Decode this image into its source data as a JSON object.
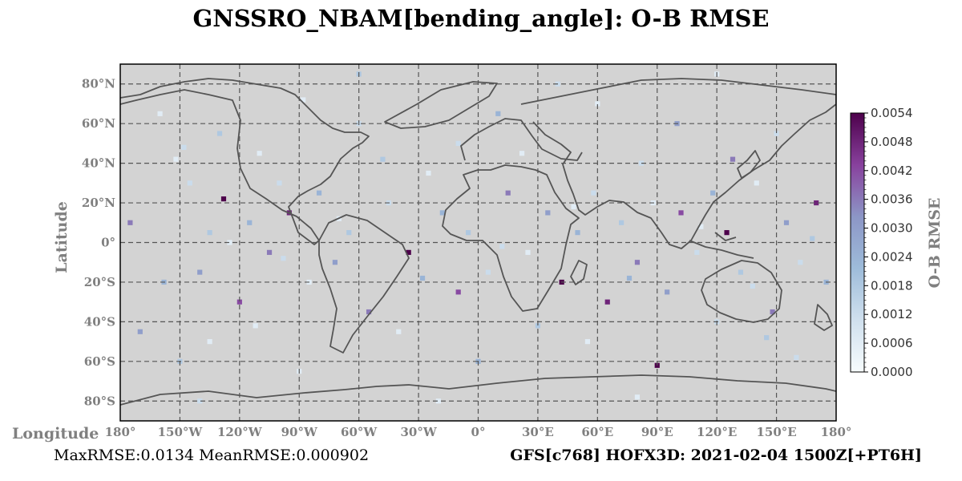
{
  "title": "GNSSRO_NBAM[bending_angle]: O-B RMSE",
  "footer": {
    "left": "MaxRMSE:0.0134 MeanRMSE:0.000902",
    "right": "GFS[c768] HOFX3D: 2021-02-04 1500Z[+PT6H]"
  },
  "colors": {
    "land": "#d3d3d3",
    "coastline": "#555555",
    "grid": "#555555",
    "cmap_low": "#f7fcfd",
    "cmap_mid": "#8c96c6",
    "cmap_high": "#4d004b"
  },
  "chart_data": {
    "type": "heatmap",
    "projection": "PlateCarree",
    "xlabel": "Longitude",
    "ylabel": "Latitude",
    "xlim": [
      -180,
      180
    ],
    "ylim": [
      -90,
      90
    ],
    "grid": true,
    "x_ticks": [
      "180°",
      "150°W",
      "120°W",
      "90°W",
      "60°W",
      "30°W",
      "0°",
      "30°E",
      "60°E",
      "90°E",
      "120°E",
      "150°E",
      "180°"
    ],
    "y_ticks": [
      "80°N",
      "60°N",
      "40°N",
      "20°N",
      "0°",
      "20°S",
      "40°S",
      "60°S",
      "80°S"
    ],
    "colorbar": {
      "label": "O-B RMSE",
      "range": [
        0.0,
        0.0054
      ],
      "ticks": [
        "0.0054",
        "0.0048",
        "0.0042",
        "0.0036",
        "0.0030",
        "0.0024",
        "0.0018",
        "0.0012",
        "0.0006",
        "0.0000"
      ],
      "cmap": "BuPu",
      "placement": "right"
    },
    "cell_size_deg": 2.5,
    "cells": [
      [
        -152,
        42,
        0.0006
      ],
      [
        -145,
        30,
        0.0012
      ],
      [
        -140,
        -15,
        0.003
      ],
      [
        -135,
        5,
        0.0018
      ],
      [
        -128,
        22,
        0.0054
      ],
      [
        -120,
        -30,
        0.0042
      ],
      [
        -115,
        10,
        0.0024
      ],
      [
        -110,
        45,
        0.0006
      ],
      [
        -105,
        -5,
        0.0036
      ],
      [
        -100,
        30,
        0.0012
      ],
      [
        -95,
        15,
        0.0048
      ],
      [
        -85,
        -20,
        0.0006
      ],
      [
        -80,
        25,
        0.0024
      ],
      [
        -72,
        -10,
        0.003
      ],
      [
        -65,
        5,
        0.0018
      ],
      [
        -55,
        -35,
        0.0036
      ],
      [
        -45,
        20,
        0.0012
      ],
      [
        -35,
        -5,
        0.0054
      ],
      [
        -25,
        35,
        0.0006
      ],
      [
        -18,
        15,
        0.0024
      ],
      [
        -10,
        -25,
        0.0042
      ],
      [
        -5,
        5,
        0.0018
      ],
      [
        5,
        -15,
        0.0012
      ],
      [
        15,
        25,
        0.0036
      ],
      [
        25,
        -5,
        0.0006
      ],
      [
        35,
        15,
        0.003
      ],
      [
        42,
        -20,
        0.0054
      ],
      [
        50,
        5,
        0.0024
      ],
      [
        58,
        25,
        0.0012
      ],
      [
        65,
        -30,
        0.0048
      ],
      [
        72,
        10,
        0.0018
      ],
      [
        80,
        -10,
        0.0036
      ],
      [
        88,
        20,
        0.0006
      ],
      [
        95,
        -25,
        0.003
      ],
      [
        102,
        15,
        0.0042
      ],
      [
        110,
        -5,
        0.0012
      ],
      [
        118,
        25,
        0.0024
      ],
      [
        125,
        5,
        0.0054
      ],
      [
        132,
        -15,
        0.0018
      ],
      [
        140,
        30,
        0.0006
      ],
      [
        148,
        -35,
        0.0036
      ],
      [
        155,
        10,
        0.003
      ],
      [
        162,
        -10,
        0.0012
      ],
      [
        170,
        20,
        0.0048
      ],
      [
        175,
        -20,
        0.0024
      ],
      [
        -160,
        65,
        0.0006
      ],
      [
        -130,
        55,
        0.0018
      ],
      [
        -60,
        60,
        0.0012
      ],
      [
        10,
        65,
        0.0024
      ],
      [
        60,
        70,
        0.0006
      ],
      [
        100,
        60,
        0.003
      ],
      [
        150,
        55,
        0.0012
      ],
      [
        -150,
        -60,
        0.0018
      ],
      [
        -90,
        -65,
        0.0006
      ],
      [
        0,
        -60,
        0.0024
      ],
      [
        90,
        -62,
        0.0054
      ],
      [
        160,
        -58,
        0.0012
      ],
      [
        -170,
        -45,
        0.003
      ],
      [
        -40,
        -45,
        0.0006
      ],
      [
        30,
        -42,
        0.0018
      ],
      [
        120,
        -40,
        0.0012
      ],
      [
        -175,
        10,
        0.0036
      ],
      [
        -158,
        -20,
        0.0024
      ],
      [
        -125,
        0,
        0.0006
      ],
      [
        -98,
        -8,
        0.0012
      ],
      [
        -70,
        12,
        0.0006
      ],
      [
        -28,
        -18,
        0.0024
      ],
      [
        12,
        -2,
        0.0012
      ],
      [
        48,
        18,
        0.0006
      ],
      [
        76,
        -18,
        0.0024
      ],
      [
        112,
        8,
        0.0006
      ],
      [
        138,
        -22,
        0.0012
      ],
      [
        168,
        2,
        0.0018
      ],
      [
        -148,
        48,
        0.0012
      ],
      [
        -112,
        -42,
        0.0006
      ],
      [
        -48,
        42,
        0.0018
      ],
      [
        22,
        45,
        0.0006
      ],
      [
        82,
        40,
        0.0012
      ],
      [
        128,
        42,
        0.0036
      ],
      [
        -135,
        -50,
        0.0006
      ],
      [
        -10,
        50,
        0.0012
      ],
      [
        55,
        -50,
        0.0006
      ],
      [
        145,
        -48,
        0.0018
      ],
      [
        -88,
        72,
        0.0006
      ],
      [
        40,
        80,
        0.0012
      ],
      [
        -20,
        -80,
        0.0006
      ],
      [
        -140,
        -80,
        0.0012
      ],
      [
        80,
        -78,
        0.0006
      ],
      [
        -60,
        85,
        0.0018
      ],
      [
        120,
        85,
        0.0006
      ]
    ]
  }
}
